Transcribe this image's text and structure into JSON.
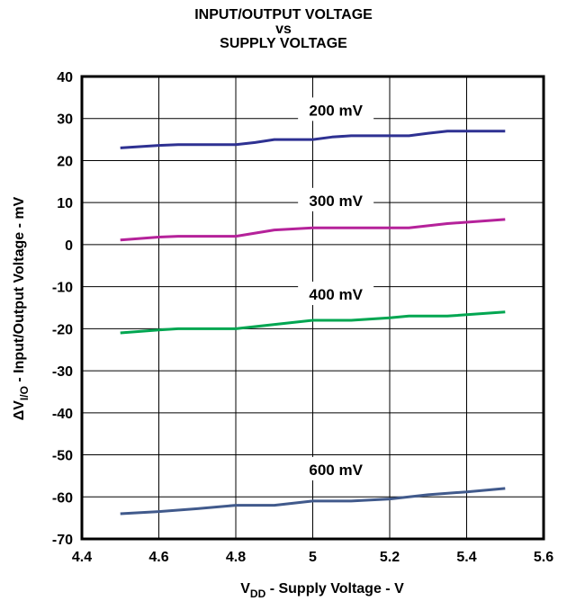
{
  "chart_data": {
    "type": "line",
    "title_lines": [
      "INPUT/OUTPUT VOLTAGE",
      "vs",
      "SUPPLY VOLTAGE"
    ],
    "xlabel_main": "V",
    "xlabel_sub": "DD",
    "xlabel_rest": " - Supply Voltage - V",
    "ylabel_delta": "ΔV",
    "ylabel_sub": "I/O",
    "ylabel_rest": " - Input/Output Voltage - mV",
    "xlim": [
      4.4,
      5.6
    ],
    "ylim": [
      -70,
      40
    ],
    "x_ticks": [
      "4.4",
      "4.6",
      "4.8",
      "5",
      "5.2",
      "5.4",
      "5.6"
    ],
    "x_tick_values": [
      4.4,
      4.6,
      4.8,
      5.0,
      5.2,
      5.4,
      5.6
    ],
    "y_ticks": [
      "40",
      "30",
      "20",
      "10",
      "0",
      "-10",
      "-20",
      "-30",
      "-40",
      "-50",
      "-60",
      "-70"
    ],
    "y_tick_values": [
      40,
      30,
      20,
      10,
      0,
      -10,
      -20,
      -30,
      -40,
      -50,
      -60,
      -70
    ],
    "grid": true,
    "series": [
      {
        "name": "200 mV",
        "color": "#2e3192",
        "label_at": [
          5.06,
          32
        ],
        "x": [
          4.5,
          4.6,
          4.65,
          4.8,
          4.85,
          4.9,
          5.0,
          5.05,
          5.1,
          5.2,
          5.25,
          5.3,
          5.35,
          5.5
        ],
        "y": [
          23,
          23.6,
          23.8,
          23.8,
          24.3,
          25,
          25,
          25.6,
          25.9,
          25.9,
          25.9,
          26.5,
          27,
          27
        ]
      },
      {
        "name": "300 mV",
        "color": "#b5229a",
        "label_at": [
          5.06,
          10.5
        ],
        "x": [
          4.5,
          4.6,
          4.65,
          4.8,
          4.9,
          5.0,
          5.1,
          5.25,
          5.35,
          5.5
        ],
        "y": [
          1.1,
          1.8,
          2.0,
          2.0,
          3.5,
          4.0,
          4.0,
          4.0,
          5.0,
          6.0
        ]
      },
      {
        "name": "400 mV",
        "color": "#00a651",
        "label_at": [
          5.06,
          -11.8
        ],
        "x": [
          4.5,
          4.6,
          4.65,
          4.8,
          4.85,
          5.0,
          5.1,
          5.2,
          5.25,
          5.35,
          5.5
        ],
        "y": [
          -21,
          -20.3,
          -20,
          -20,
          -19.5,
          -18,
          -18,
          -17.4,
          -17,
          -17,
          -16
        ]
      },
      {
        "name": "600 mV",
        "color": "#415a8c",
        "label_at": [
          5.06,
          -53.5
        ],
        "x": [
          4.5,
          4.6,
          4.7,
          4.8,
          4.9,
          5.0,
          5.1,
          5.2,
          5.3,
          5.4,
          5.5
        ],
        "y": [
          -64,
          -63.5,
          -62.8,
          -62,
          -62,
          -61,
          -61,
          -60.5,
          -59.5,
          -58.8,
          -58
        ]
      }
    ]
  }
}
